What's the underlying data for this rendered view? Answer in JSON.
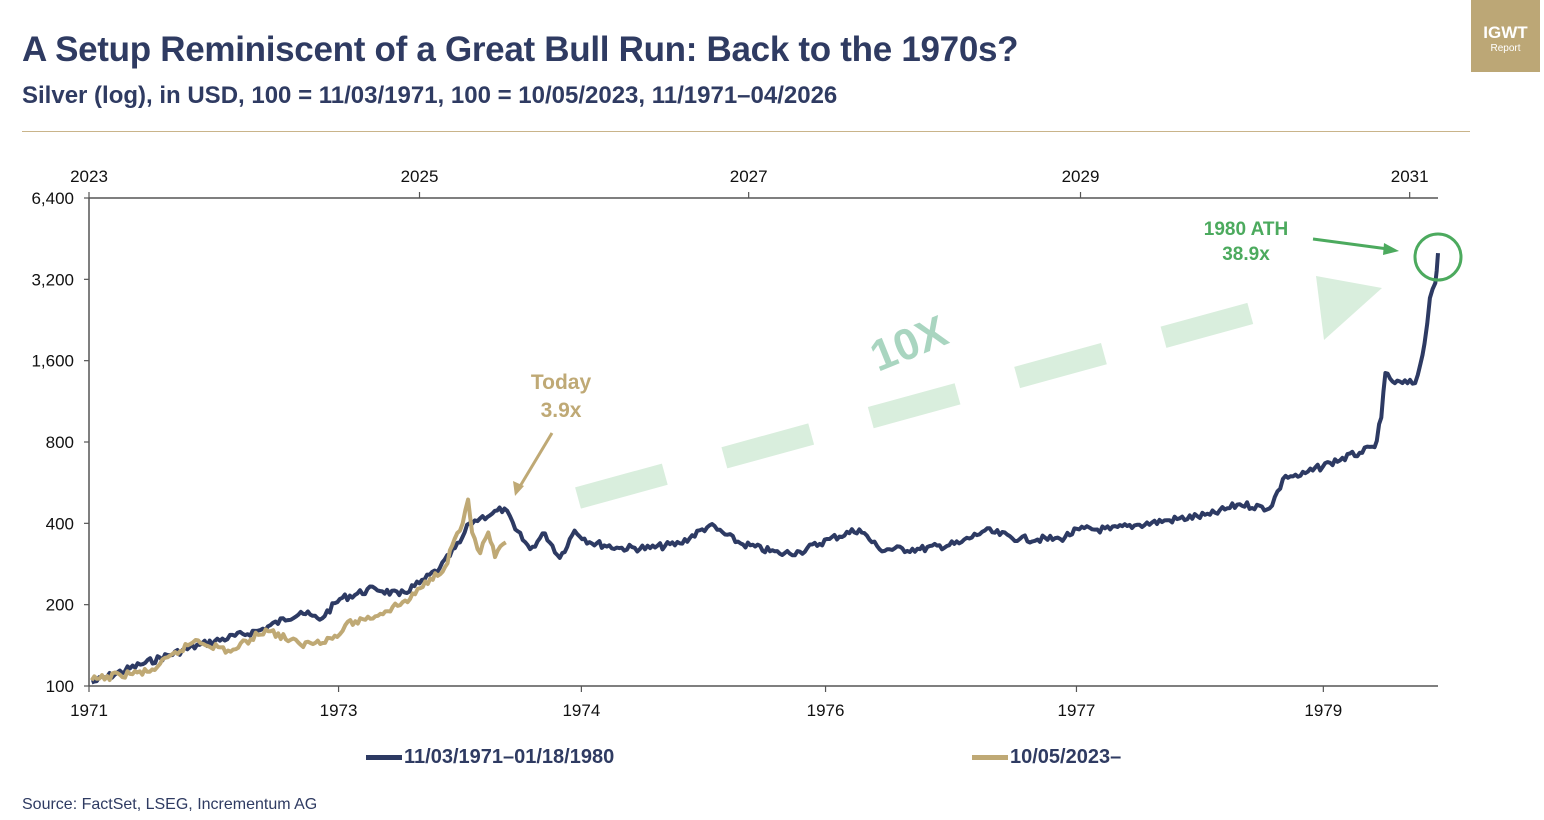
{
  "header": {
    "title": "A Setup Reminiscent of a Great Bull Run: Back to the 1970s?",
    "subtitle": "Silver (log), in USD, 100 = 11/03/1971, 100 = 10/05/2023, 11/1971–04/2026"
  },
  "logo": {
    "line1": "IGWT",
    "line2": "Report"
  },
  "source": "Source: FactSet, LSEG, Incrementum AG",
  "colors": {
    "blue": "#2d3a63",
    "gold": "#bfa975",
    "green": "#4caa5e",
    "arrow_fill": "#d9eedd",
    "ten_x": "#a9d5c0"
  },
  "chart_data": {
    "type": "line",
    "title": "A Setup Reminiscent of a Great Bull Run: Back to the 1970s?",
    "subtitle": "Silver (log), in USD, 100 = 11/03/1971, 100 = 10/05/2023, 11/1971–04/2026",
    "yscale": "log2",
    "ylim": [
      100,
      6400
    ],
    "yticks": [
      100,
      200,
      400,
      800,
      1600,
      3200,
      6400
    ],
    "ytick_labels": [
      "100",
      "200",
      "400",
      "800",
      "1,600",
      "3,200",
      "6,400"
    ],
    "xlim": [
      0,
      1
    ],
    "bottom_axis": {
      "ticks": [
        0.0,
        0.185,
        0.365,
        0.546,
        0.732,
        0.915
      ],
      "labels": [
        "1971",
        "1973",
        "1974",
        "1976",
        "1977",
        "1979"
      ]
    },
    "top_axis": {
      "ticks": [
        0.0,
        0.245,
        0.489,
        0.735,
        0.979
      ],
      "labels": [
        "2023",
        "2025",
        "2027",
        "2029",
        "2031"
      ]
    },
    "grid": false,
    "legend_position": "bottom",
    "series": [
      {
        "name": "11/03/1971–01/18/1980",
        "color": "#2d3a63",
        "x": [
          0.002,
          0.038,
          0.082,
          0.127,
          0.157,
          0.171,
          0.186,
          0.212,
          0.23,
          0.245,
          0.26,
          0.275,
          0.282,
          0.29,
          0.299,
          0.308,
          0.316,
          0.327,
          0.338,
          0.349,
          0.36,
          0.371,
          0.393,
          0.416,
          0.438,
          0.46,
          0.483,
          0.512,
          0.527,
          0.549,
          0.571,
          0.586,
          0.616,
          0.645,
          0.664,
          0.69,
          0.72,
          0.734,
          0.757,
          0.775,
          0.801,
          0.831,
          0.853,
          0.875,
          0.887,
          0.898,
          0.92,
          0.942,
          0.953,
          0.958,
          0.961,
          0.968,
          0.983,
          0.987,
          0.99,
          0.994,
          0.998,
          1.0
        ],
        "values": [
          103,
          120,
          142,
          161,
          188,
          176,
          210,
          230,
          217,
          240,
          273,
          340,
          400,
          418,
          435,
          454,
          380,
          321,
          367,
          298,
          376,
          341,
          324,
          324,
          337,
          393,
          337,
          309,
          314,
          350,
          380,
          321,
          321,
          337,
          376,
          350,
          350,
          380,
          380,
          393,
          411,
          430,
          471,
          454,
          600,
          600,
          670,
          730,
          765,
          985,
          1440,
          1320,
          1320,
          1560,
          1850,
          2730,
          3100,
          4000
        ]
      },
      {
        "name": "10/05/2023–",
        "color": "#bfa975",
        "x": [
          0.002,
          0.023,
          0.045,
          0.079,
          0.105,
          0.131,
          0.157,
          0.184,
          0.19,
          0.216,
          0.238,
          0.253,
          0.264,
          0.271,
          0.277,
          0.281,
          0.284,
          0.29,
          0.296,
          0.301,
          0.309
        ],
        "values": [
          105,
          110,
          113,
          148,
          134,
          162,
          142,
          152,
          168,
          185,
          210,
          250,
          276,
          350,
          400,
          490,
          370,
          310,
          370,
          300,
          340
        ]
      }
    ],
    "annotations": [
      {
        "text_line1": "Today",
        "text_line2": "3.9x",
        "color": "#bfa975"
      },
      {
        "text_line1": "1980 ATH",
        "text_line2": "38.9x",
        "color": "#4caa5e"
      },
      {
        "text": "10X",
        "color": "#a9d5c0"
      }
    ]
  },
  "legend": [
    {
      "label": "11/03/1971–01/18/1980",
      "color": "#2d3a63"
    },
    {
      "label": "10/05/2023–",
      "color": "#bfa975"
    }
  ]
}
